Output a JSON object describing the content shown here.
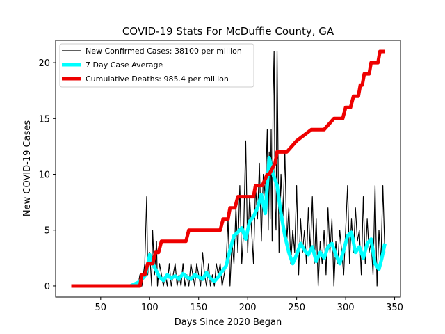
{
  "chart_data": {
    "type": "line",
    "title": "COVID-19 Stats For McDuffie County, GA",
    "xlabel": "Days Since 2020 Began",
    "ylabel": "New COVID-19 Cases",
    "xlim": [
      4,
      356
    ],
    "ylim": [
      -1,
      22
    ],
    "xticks": [
      50,
      100,
      150,
      200,
      250,
      300,
      350
    ],
    "yticks": [
      0,
      5,
      10,
      15,
      20
    ],
    "grid": false,
    "legend_position": "top-left",
    "series": [
      {
        "name": "New Confirmed Cases: 38100 per million",
        "color": "#000000",
        "style": "thin",
        "x": [
          20,
          40,
          60,
          80,
          88,
          90,
          92,
          95,
          97,
          98,
          100,
          102,
          103,
          105,
          107,
          108,
          110,
          112,
          114,
          116,
          118,
          120,
          122,
          124,
          126,
          128,
          130,
          132,
          134,
          136,
          138,
          140,
          142,
          144,
          146,
          148,
          150,
          152,
          154,
          156,
          158,
          160,
          162,
          164,
          166,
          168,
          170,
          172,
          174,
          176,
          178,
          180,
          182,
          184,
          186,
          188,
          190,
          192,
          194,
          196,
          198,
          200,
          202,
          204,
          206,
          208,
          210,
          212,
          214,
          216,
          218,
          220,
          221,
          222,
          223,
          224,
          225,
          226,
          227,
          228,
          229,
          230,
          232,
          234,
          236,
          238,
          240,
          242,
          244,
          246,
          248,
          250,
          252,
          254,
          256,
          258,
          260,
          262,
          264,
          266,
          268,
          270,
          272,
          274,
          276,
          278,
          280,
          282,
          284,
          286,
          288,
          290,
          292,
          294,
          296,
          298,
          300,
          302,
          304,
          306,
          308,
          310,
          312,
          314,
          316,
          318,
          320,
          322,
          324,
          326,
          328,
          330,
          332,
          334,
          336,
          338,
          340
        ],
        "y": [
          0,
          0,
          0,
          0,
          0,
          1,
          0,
          2,
          8,
          1,
          3,
          0,
          5,
          1,
          4,
          0,
          2,
          1,
          0,
          1,
          0,
          2,
          0,
          1,
          2,
          0,
          1,
          0,
          2,
          0,
          1,
          0,
          2,
          1,
          0,
          2,
          1,
          0,
          3,
          1,
          0,
          2,
          0,
          1,
          0,
          2,
          1,
          2,
          0,
          1,
          2,
          6,
          0,
          4,
          2,
          7,
          3,
          9,
          2,
          5,
          13,
          3,
          8,
          5,
          2,
          9,
          6,
          11,
          4,
          10,
          8,
          14,
          5,
          12,
          6,
          14,
          4,
          17,
          21,
          7,
          5,
          21,
          3,
          10,
          6,
          12,
          4,
          7,
          2,
          5,
          3,
          9,
          1,
          6,
          3,
          5,
          2,
          7,
          3,
          8,
          2,
          6,
          0,
          4,
          2,
          5,
          1,
          7,
          3,
          6,
          0,
          4,
          2,
          5,
          3,
          1,
          5,
          9,
          2,
          6,
          3,
          7,
          4,
          5,
          1,
          8,
          2,
          6,
          3,
          4,
          1,
          9,
          0,
          5,
          2,
          9,
          3
        ]
      },
      {
        "name": "7 Day Case Average",
        "color": "#00ffff",
        "style": "medium",
        "x": [
          20,
          40,
          60,
          80,
          88,
          92,
          96,
          100,
          103,
          106,
          110,
          114,
          118,
          122,
          126,
          130,
          134,
          138,
          142,
          146,
          150,
          154,
          158,
          162,
          166,
          170,
          174,
          178,
          182,
          186,
          190,
          194,
          198,
          202,
          206,
          210,
          214,
          218,
          222,
          226,
          230,
          234,
          238,
          242,
          246,
          250,
          254,
          258,
          262,
          266,
          270,
          274,
          278,
          282,
          286,
          290,
          294,
          298,
          302,
          306,
          310,
          314,
          318,
          322,
          326,
          330,
          334,
          337,
          340
        ],
        "y": [
          0,
          0,
          0,
          0,
          0.3,
          0.6,
          1.0,
          2.8,
          2.0,
          1.5,
          0.8,
          0.5,
          1.0,
          0.7,
          0.9,
          0.6,
          1.1,
          0.8,
          0.6,
          1.0,
          0.8,
          0.6,
          1.2,
          0.7,
          0.4,
          0.8,
          1.3,
          1.8,
          3.2,
          4.5,
          4.8,
          5.2,
          4.2,
          5.8,
          6.2,
          7.0,
          8.2,
          6.5,
          11.5,
          10.0,
          9.0,
          6.5,
          4.5,
          3.0,
          2.0,
          2.8,
          3.8,
          3.2,
          2.8,
          3.5,
          2.2,
          3.0,
          2.5,
          3.5,
          3.8,
          2.8,
          2.0,
          3.2,
          4.5,
          4.8,
          3.0,
          3.5,
          2.5,
          3.8,
          4.2,
          2.0,
          1.5,
          2.5,
          3.8
        ]
      },
      {
        "name": "Cumulative Deaths: 985.4 per million",
        "color": "#ee0000",
        "style": "thick",
        "x": [
          20,
          90,
          92,
          95,
          98,
          100,
          103,
          106,
          109,
          112,
          137,
          140,
          172,
          175,
          180,
          182,
          187,
          190,
          198,
          200,
          206,
          208,
          212,
          215,
          220,
          222,
          228,
          230,
          235,
          240,
          250,
          265,
          278,
          288,
          297,
          300,
          305,
          308,
          311,
          313,
          315,
          317,
          319,
          321,
          324,
          326,
          333,
          335,
          340
        ],
        "y": [
          0,
          0,
          1,
          1,
          2,
          2,
          2,
          3,
          3,
          4,
          4,
          5,
          5,
          6,
          6,
          7,
          7,
          8,
          8,
          8,
          8,
          9,
          9,
          9,
          10,
          10,
          11,
          12,
          12,
          12,
          13,
          14,
          14,
          15,
          15,
          16,
          16,
          17,
          17,
          17,
          18,
          18,
          19,
          19,
          19,
          20,
          20,
          21,
          21
        ]
      }
    ]
  }
}
